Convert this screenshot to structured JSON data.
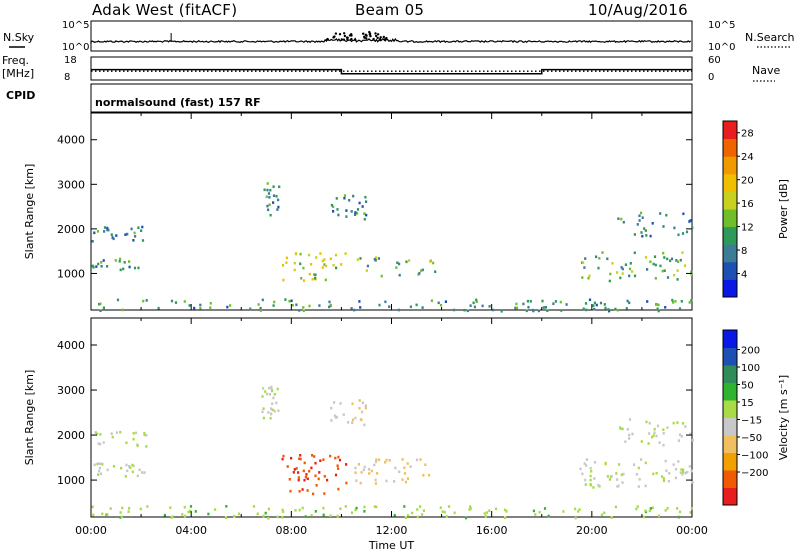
{
  "header": {
    "station": "Adak West (fitACF)",
    "beam": "Beam 05",
    "date": "10/Aug/2016"
  },
  "chart_data": [
    {
      "type": "line",
      "name": "sky-noise-panel",
      "left_label": "N.Sky",
      "right_label": "N.Search",
      "left_ticks": [
        "10^5",
        "10^0"
      ],
      "right_ticks": [
        "10^5",
        "10^0"
      ],
      "noise_baseline": 1,
      "noise_bump": {
        "x": [
          "09:30",
          "12:00"
        ],
        "note_values": [
          2,
          6
        ]
      }
    },
    {
      "type": "line",
      "name": "frequency-panel",
      "left_label_line1": "Freq.",
      "left_label_line2": "[MHz]",
      "right_label": "Nave",
      "left_ticks": [
        "18",
        "8"
      ],
      "right_ticks": [
        "60",
        "0"
      ],
      "freq_mhz": [
        {
          "from": "00:00",
          "to": "10:00",
          "value": 12.5
        },
        {
          "from": "10:00",
          "to": "18:00",
          "value": 10.7
        },
        {
          "from": "18:00",
          "to": "24:00",
          "value": 12.5
        }
      ],
      "nave": 23,
      "nave_ylim": [
        0,
        60
      ]
    },
    {
      "type": "table",
      "name": "cpid-panel",
      "left_label": "CPID",
      "text": "normalsound (fast) 157 RF"
    },
    {
      "type": "heatmap",
      "name": "power-panel",
      "ylabel": "Slant Range [km]",
      "xlim_hours": [
        0,
        24
      ],
      "ylim_km": [
        180,
        4600
      ],
      "y_ticks": [
        "1000",
        "2000",
        "3000",
        "4000"
      ],
      "colorbar_label": "Power [dB]",
      "colorbar_ticks": [
        "4",
        "8",
        "12",
        "16",
        "20",
        "24",
        "28"
      ],
      "colorbar_range": [
        0,
        30
      ],
      "colors": [
        "#0a18e6",
        "#1e50b4",
        "#3c7c96",
        "#2e9a5a",
        "#6fbf2a",
        "#c8d21e",
        "#f0c000",
        "#f09a00",
        "#f06400",
        "#e81e1e"
      ],
      "echo_regions": [
        {
          "t": [
            0.0,
            2.2
          ],
          "range_km": [
            1750,
            2100
          ],
          "level": 8
        },
        {
          "t": [
            0.0,
            2.2
          ],
          "range_km": [
            1100,
            1400
          ],
          "level": 10
        },
        {
          "t": [
            6.8,
            7.5
          ],
          "range_km": [
            2300,
            3100
          ],
          "level": 10
        },
        {
          "t": [
            7.6,
            10.2
          ],
          "range_km": [
            850,
            1500
          ],
          "level": 16
        },
        {
          "t": [
            9.5,
            11.0
          ],
          "range_km": [
            2200,
            2800
          ],
          "level": 10
        },
        {
          "t": [
            10.5,
            13.8
          ],
          "range_km": [
            950,
            1400
          ],
          "level": 12
        },
        {
          "t": [
            19.5,
            24.0
          ],
          "range_km": [
            850,
            1500
          ],
          "level": 12
        },
        {
          "t": [
            21.0,
            24.0
          ],
          "range_km": [
            1800,
            2400
          ],
          "level": 9
        },
        {
          "t": [
            0.0,
            24.0
          ],
          "range_km": [
            180,
            450
          ],
          "level": 10
        }
      ]
    },
    {
      "type": "heatmap",
      "name": "velocity-panel",
      "ylabel": "Slant Range [km]",
      "xlabel": "Time UT",
      "xlim_hours": [
        0,
        24
      ],
      "ylim_km": [
        180,
        4600
      ],
      "x_ticks": [
        "00:00",
        "04:00",
        "08:00",
        "12:00",
        "16:00",
        "20:00",
        "00:00"
      ],
      "y_ticks": [
        "1000",
        "2000",
        "3000",
        "4000"
      ],
      "colorbar_label": "Velocity [m s⁻¹]",
      "colorbar_ticks": [
        "200",
        "100",
        "50",
        "15",
        "−15",
        "−50",
        "−100",
        "−200"
      ],
      "colorbar_range": [
        -250,
        250
      ],
      "colors": [
        "#e81e1e",
        "#f05a00",
        "#f0a000",
        "#f0c060",
        "#c8c8c8",
        "#a8dc46",
        "#2eb42e",
        "#2e8c5a",
        "#1e50b4",
        "#0a18e6"
      ],
      "echo_regions": [
        {
          "t": [
            0.0,
            2.2
          ],
          "range_km": [
            1750,
            2100
          ],
          "vel": 0
        },
        {
          "t": [
            0.0,
            2.2
          ],
          "range_km": [
            1100,
            1400
          ],
          "vel": 0
        },
        {
          "t": [
            6.8,
            7.5
          ],
          "range_km": [
            2300,
            3100
          ],
          "vel": 0
        },
        {
          "t": [
            7.6,
            10.2
          ],
          "range_km": [
            700,
            1600
          ],
          "vel": -200
        },
        {
          "t": [
            9.5,
            11.0
          ],
          "range_km": [
            2200,
            2800
          ],
          "vel": -40
        },
        {
          "t": [
            10.5,
            13.8
          ],
          "range_km": [
            950,
            1500
          ],
          "vel": -60
        },
        {
          "t": [
            19.5,
            24.0
          ],
          "range_km": [
            850,
            1500
          ],
          "vel": 0
        },
        {
          "t": [
            21.0,
            24.0
          ],
          "range_km": [
            1800,
            2400
          ],
          "vel": 0
        },
        {
          "t": [
            0.0,
            24.0
          ],
          "range_km": [
            180,
            450
          ],
          "vel": 30
        }
      ]
    }
  ]
}
